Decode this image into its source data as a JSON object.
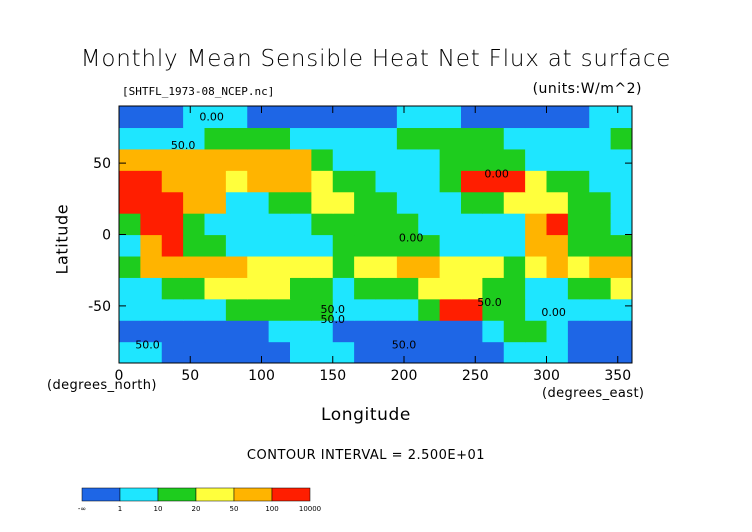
{
  "chart_data": {
    "type": "heatmap",
    "title": "Monthly Mean Sensible Heat Net Flux at surface",
    "source_file": "[SHTFL_1973-08_NCEP.nc]",
    "units_label": "(units:W/m^2)",
    "xlabel": "Longitude",
    "ylabel": "Latitude",
    "x_unit_label": "(degrees_east)",
    "y_unit_label": "(degrees_north)",
    "xlim": [
      0,
      360
    ],
    "ylim": [
      -90,
      90
    ],
    "x_ticks": [
      "0",
      "50",
      "100",
      "150",
      "200",
      "250",
      "300",
      "350"
    ],
    "y_ticks": [
      "50",
      "0",
      "-50"
    ],
    "contour_interval_text": "CONTOUR INTERVAL = 2.500E+01",
    "contour_labels": [
      "0.00",
      "50.0",
      "0.00",
      "0.00",
      "50.0",
      "50.0",
      "50.0",
      "0.00",
      "50.0",
      "50.0"
    ],
    "colorbar": {
      "colors": [
        "#1e66e6",
        "#1ee6ff",
        "#1ecc1e",
        "#ffff3c",
        "#ffb400",
        "#ff1e00"
      ],
      "tick_labels": [
        "-∞",
        "1",
        "10",
        "20",
        "50",
        "100",
        "10000"
      ]
    }
  }
}
